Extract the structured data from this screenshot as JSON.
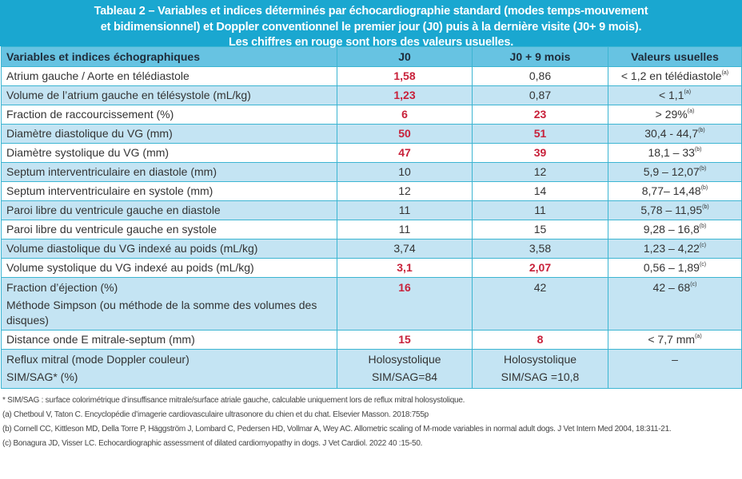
{
  "title": {
    "line1": "Tableau 2 – Variables et indices déterminés par échocardiographie standard (modes temps-mouvement",
    "line2": "et bidimensionnel) et Doppler conventionnel le premier jour (J0) puis à la dernière visite (J0+ 9 mois).",
    "line3": "Les chiffres en rouge sont hors des valeurs usuelles."
  },
  "colors": {
    "header_band": "#1aa7d0",
    "column_header": "#67c3e2",
    "row_alt": "#c4e4f3",
    "out_of_range": "#c8213a",
    "border": "#3cb5d2"
  },
  "table": {
    "headers": [
      "Variables et indices échographiques",
      "J0",
      "J0 + 9 mois",
      "Valeurs usuelles"
    ],
    "rows": [
      {
        "label": "Atrium gauche / Aorte en télédiastole",
        "j0": "1,58",
        "j0_red": true,
        "j9": "0,86",
        "j9_red": false,
        "ref": "< 1,2 en télédiastole",
        "ref_note": "(a)"
      },
      {
        "label": "Volume de l’atrium gauche en télésystole (mL/kg)",
        "j0": "1,23",
        "j0_red": true,
        "j9": "0,87",
        "j9_red": false,
        "ref": "< 1,1",
        "ref_note": "(a)"
      },
      {
        "label": "Fraction de raccourcissement (%)",
        "j0": "6",
        "j0_red": true,
        "j9": "23",
        "j9_red": true,
        "ref": "> 29%",
        "ref_note": "(a)"
      },
      {
        "label": "Diamètre diastolique du VG (mm)",
        "j0": "50",
        "j0_red": true,
        "j9": "51",
        "j9_red": true,
        "ref": "30,4 - 44,7",
        "ref_note": "(b)"
      },
      {
        "label": "Diamètre systolique du VG (mm)",
        "j0": "47",
        "j0_red": true,
        "j9": "39",
        "j9_red": true,
        "ref": "18,1 – 33",
        "ref_note": "(b)"
      },
      {
        "label": "Septum interventriculaire en diastole (mm)",
        "j0": "10",
        "j0_red": false,
        "j9": "12",
        "j9_red": false,
        "ref": "5,9 – 12,07",
        "ref_note": "(b)"
      },
      {
        "label": "Septum interventriculaire en systole (mm)",
        "j0": "12",
        "j0_red": false,
        "j9": "14",
        "j9_red": false,
        "ref": "8,77– 14,48",
        "ref_note": "(b)"
      },
      {
        "label": "Paroi libre du ventricule gauche en diastole",
        "j0": "11",
        "j0_red": false,
        "j9": "11",
        "j9_red": false,
        "ref": "5,78 – 11,95",
        "ref_note": "(b)"
      },
      {
        "label": "Paroi libre du ventricule gauche en systole",
        "j0": "11",
        "j0_red": false,
        "j9": "15",
        "j9_red": false,
        "ref": "9,28 – 16,8",
        "ref_note": "(b)"
      },
      {
        "label": "Volume diastolique du VG indexé au poids (mL/kg)",
        "j0": "3,74",
        "j0_red": false,
        "j9": "3,58",
        "j9_red": false,
        "ref": "1,23 – 4,22",
        "ref_note": "(c)"
      },
      {
        "label": "Volume systolique du VG indexé au poids (mL/kg)",
        "j0": "3,1",
        "j0_red": true,
        "j9": "2,07",
        "j9_red": true,
        "ref": "0,56 – 1,89",
        "ref_note": "(c)"
      }
    ],
    "fe_row": {
      "label_line1": "Fraction d’éjection (%)",
      "label_line2": "Méthode Simpson (ou méthode de la somme des volumes des disques)",
      "j0": "16",
      "j9": "42",
      "ref": "42 – 68",
      "ref_note": "(c)"
    },
    "distance_row": {
      "label": "Distance onde E mitrale-septum (mm)",
      "j0": "15",
      "j9": "8",
      "ref": "< 7,7 mm",
      "ref_note": "(a)"
    },
    "reflux_row": {
      "label_line1": "Reflux mitral (mode Doppler couleur)",
      "label_line2": "SIM/SAG* (%)",
      "j0_line1": "Holosystolique",
      "j0_line2": "SIM/SAG=84",
      "j9_line1": "Holosystolique",
      "j9_line2": "SIM/SAG =10,8",
      "ref": "–"
    }
  },
  "footnotes": {
    "star": "* SIM/SAG : surface colorimétrique d’insuffisance mitrale/surface atriale gauche, calculable uniquement lors de reflux mitral holosystolique.",
    "a": "(a) Chetboul V, Taton C. Encyclopédie d’imagerie cardiovasculaire ultrasonore du chien et du chat. Elsevier Masson. 2018:755p",
    "b": "(b) Cornell CC, Kittleson MD, Della Torre P, Häggström J, Lombard C, Pedersen HD, Vollmar A, Wey AC. Allometric scaling of M-mode variables in normal adult dogs. J Vet Intern Med 2004, 18:311-21.",
    "c": "(c) Bonagura JD, Visser LC. Echocardiographic assessment of dilated cardiomyopathy in dogs. J Vet Cardiol. 2022 40 :15-50."
  }
}
